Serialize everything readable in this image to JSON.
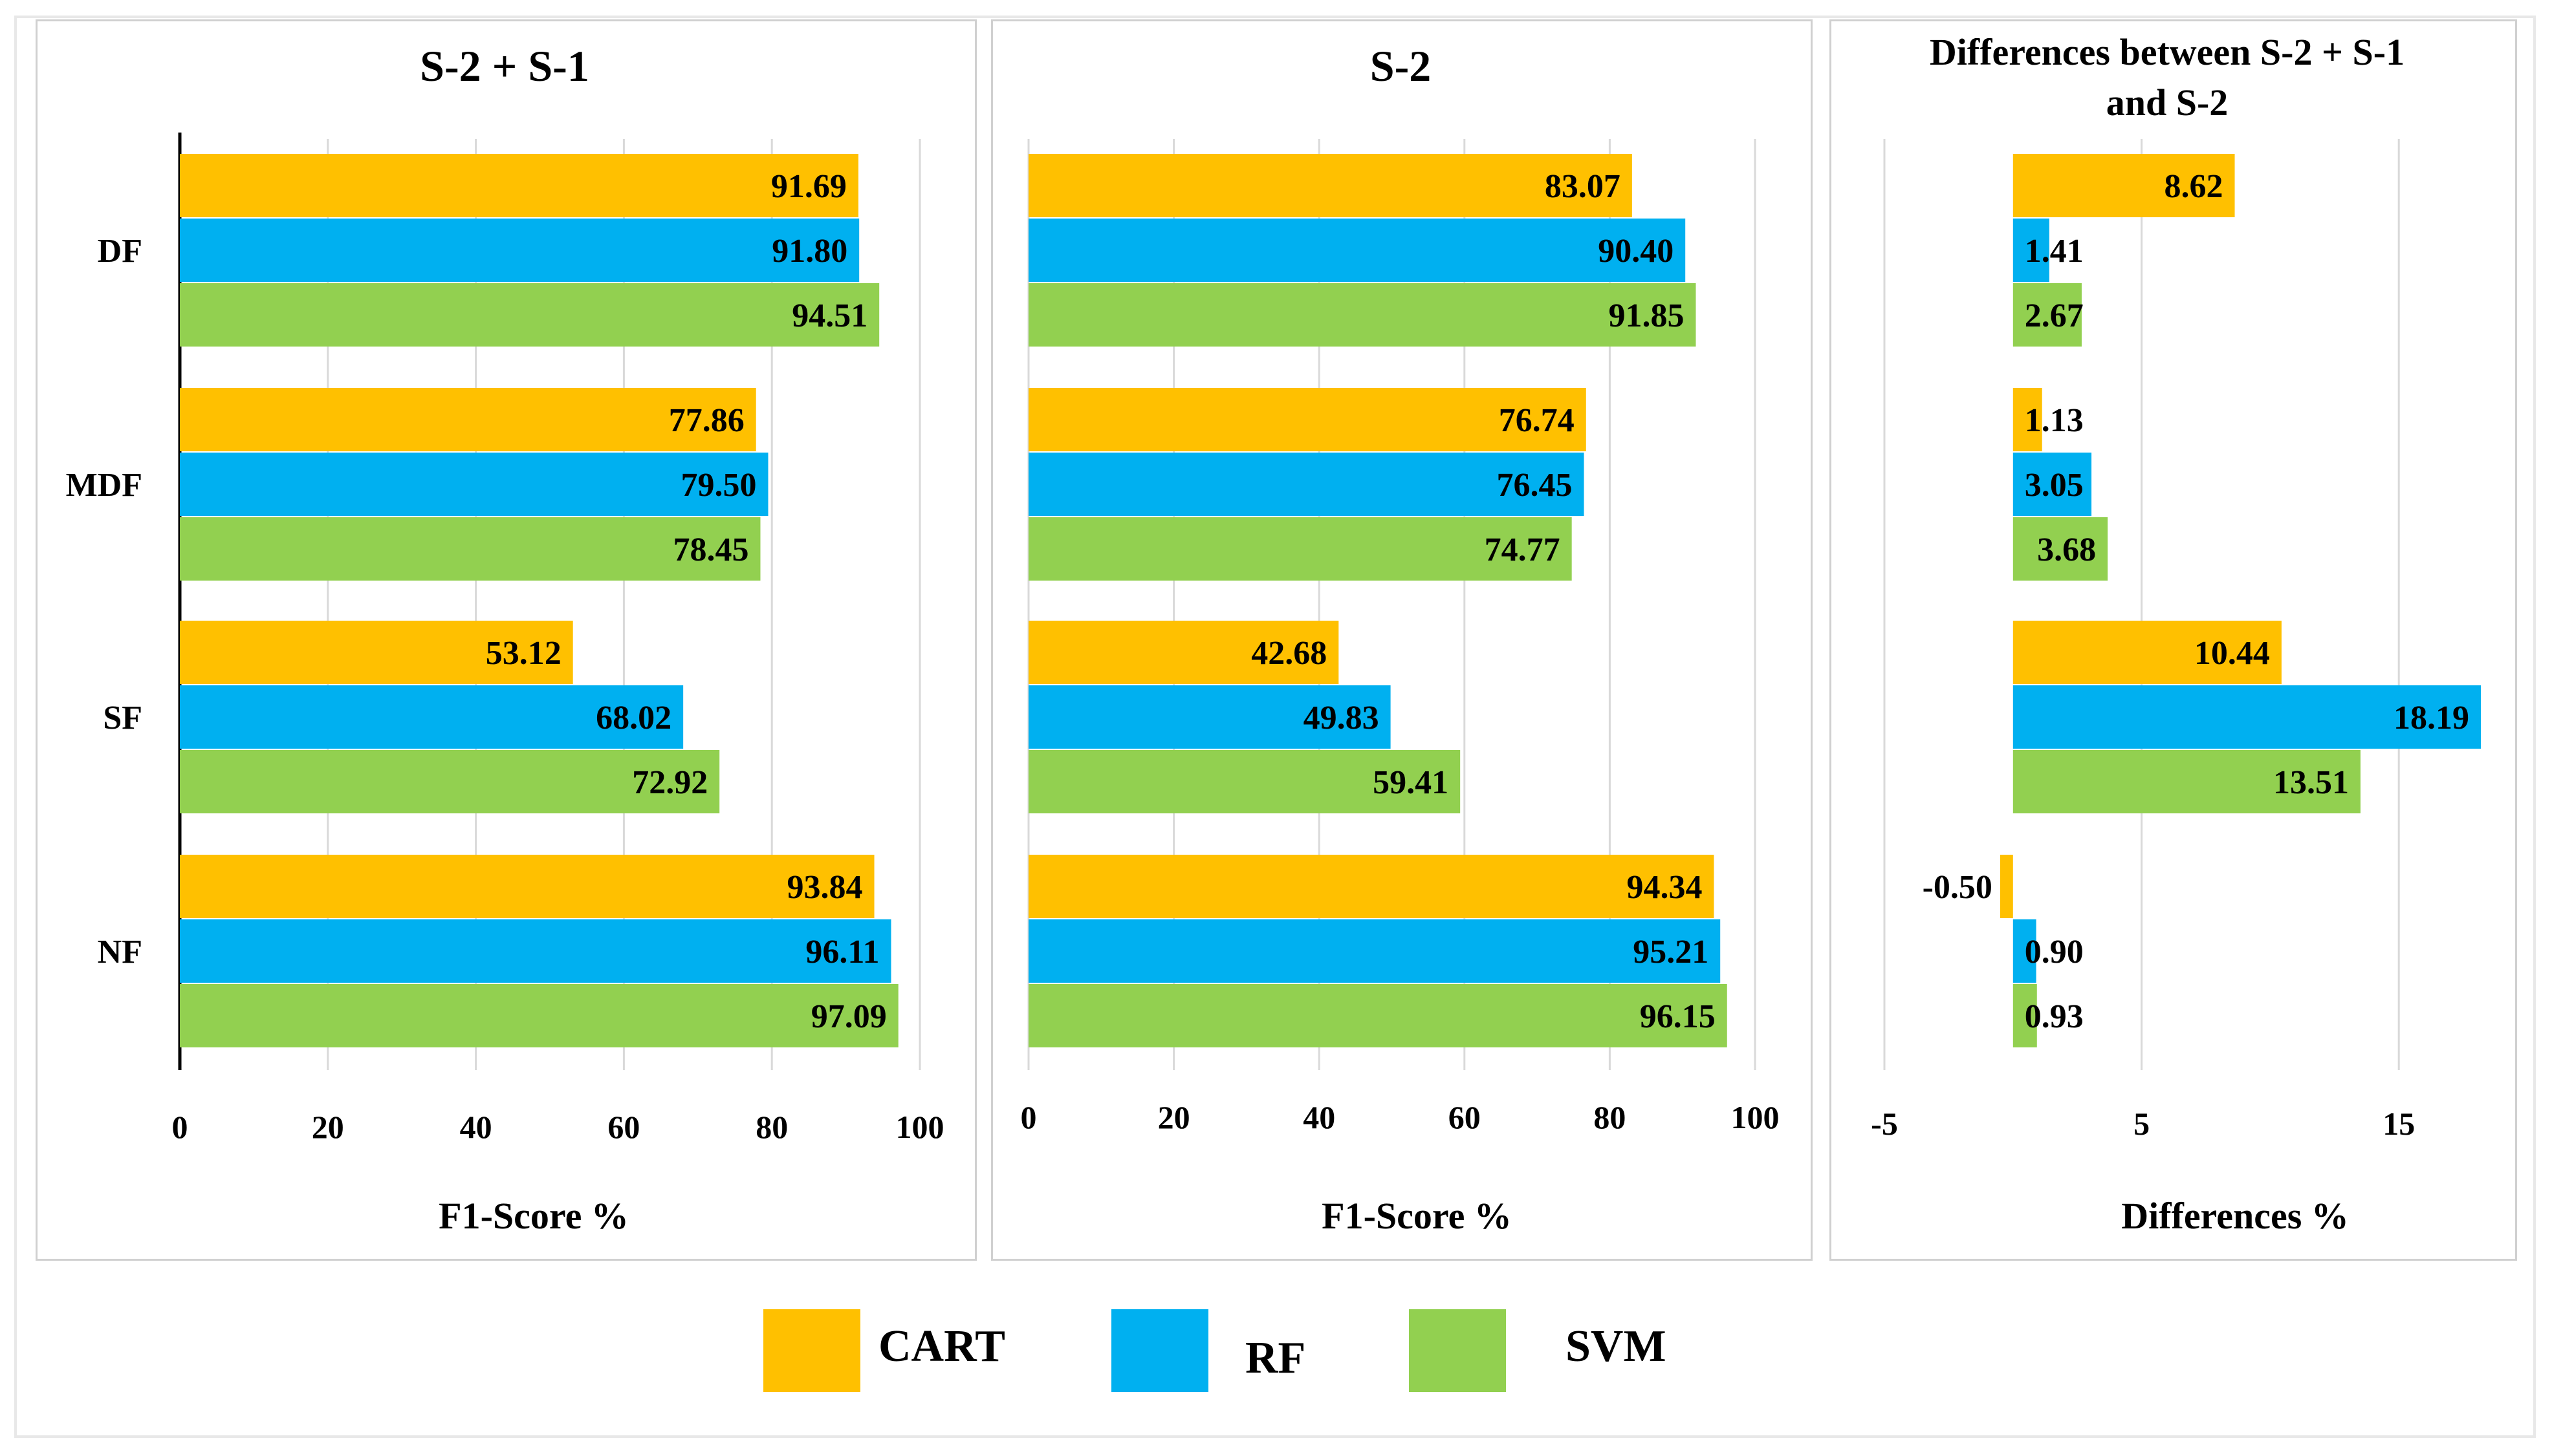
{
  "chart_data": [
    {
      "type": "bar",
      "orientation": "horizontal",
      "title": "S-2 + S-1",
      "xlabel": "F1-Score %",
      "xlim": [
        0,
        100
      ],
      "ticks": [
        "0",
        "20",
        "40",
        "60",
        "80",
        "100"
      ],
      "tick_values": [
        0,
        20,
        40,
        60,
        80,
        100
      ],
      "categories": [
        "DF",
        "MDF",
        "SF",
        "NF"
      ],
      "series": [
        {
          "name": "CART",
          "values": [
            91.69,
            77.86,
            53.12,
            93.84
          ],
          "labels": [
            "91.69",
            "77.86",
            "53.12",
            "93.84"
          ]
        },
        {
          "name": "RF",
          "values": [
            91.8,
            79.5,
            68.02,
            96.11
          ],
          "labels": [
            "91.80",
            "79.50",
            "68.02",
            "96.11"
          ]
        },
        {
          "name": "SVM",
          "values": [
            94.51,
            78.45,
            72.92,
            97.09
          ],
          "labels": [
            "94.51",
            "78.45",
            "72.92",
            "97.09"
          ]
        }
      ]
    },
    {
      "type": "bar",
      "orientation": "horizontal",
      "title": "S-2",
      "xlabel": "F1-Score %",
      "xlim": [
        0,
        100
      ],
      "ticks": [
        "0",
        "20",
        "40",
        "60",
        "80",
        "100"
      ],
      "tick_values": [
        0,
        20,
        40,
        60,
        80,
        100
      ],
      "categories": [
        "DF",
        "MDF",
        "SF",
        "NF"
      ],
      "series": [
        {
          "name": "CART",
          "values": [
            83.07,
            76.74,
            42.68,
            94.34
          ],
          "labels": [
            "83.07",
            "76.74",
            "42.68",
            "94.34"
          ]
        },
        {
          "name": "RF",
          "values": [
            90.4,
            76.45,
            49.83,
            95.21
          ],
          "labels": [
            "90.40",
            "76.45",
            "49.83",
            "95.21"
          ]
        },
        {
          "name": "SVM",
          "values": [
            91.85,
            74.77,
            59.41,
            96.15
          ],
          "labels": [
            "91.85",
            "74.77",
            "59.41",
            "96.15"
          ]
        }
      ]
    },
    {
      "type": "bar",
      "orientation": "horizontal",
      "title_lines": [
        "Differences between S-2 + S-1",
        "and S-2"
      ],
      "xlabel": "Differences %",
      "xlim": [
        -5,
        20
      ],
      "ticks": [
        "-5",
        "5",
        "15"
      ],
      "tick_values": [
        -5,
        5,
        15
      ],
      "categories": [
        "DF",
        "MDF",
        "SF",
        "NF"
      ],
      "series": [
        {
          "name": "CART",
          "values": [
            8.62,
            1.13,
            10.44,
            -0.5
          ],
          "labels": [
            "8.62",
            "1.13",
            "10.44",
            "-0.50"
          ]
        },
        {
          "name": "RF",
          "values": [
            1.41,
            3.05,
            18.19,
            0.9
          ],
          "labels": [
            "1.41",
            "3.05",
            "18.19",
            "0.90"
          ]
        },
        {
          "name": "SVM",
          "values": [
            2.67,
            3.68,
            13.51,
            0.93
          ],
          "labels": [
            "2.67",
            "3.68",
            "13.51",
            "0.93"
          ]
        }
      ]
    }
  ],
  "legend": [
    {
      "name": "CART",
      "color": "#FFC000"
    },
    {
      "name": "RF",
      "color": "#00B0F0"
    },
    {
      "name": "SVM",
      "color": "#92D050"
    }
  ],
  "colors": {
    "CART": "#FFC000",
    "RF": "#00B0F0",
    "SVM": "#92D050",
    "grid": "#d9d9d9",
    "axis": "#000000"
  }
}
